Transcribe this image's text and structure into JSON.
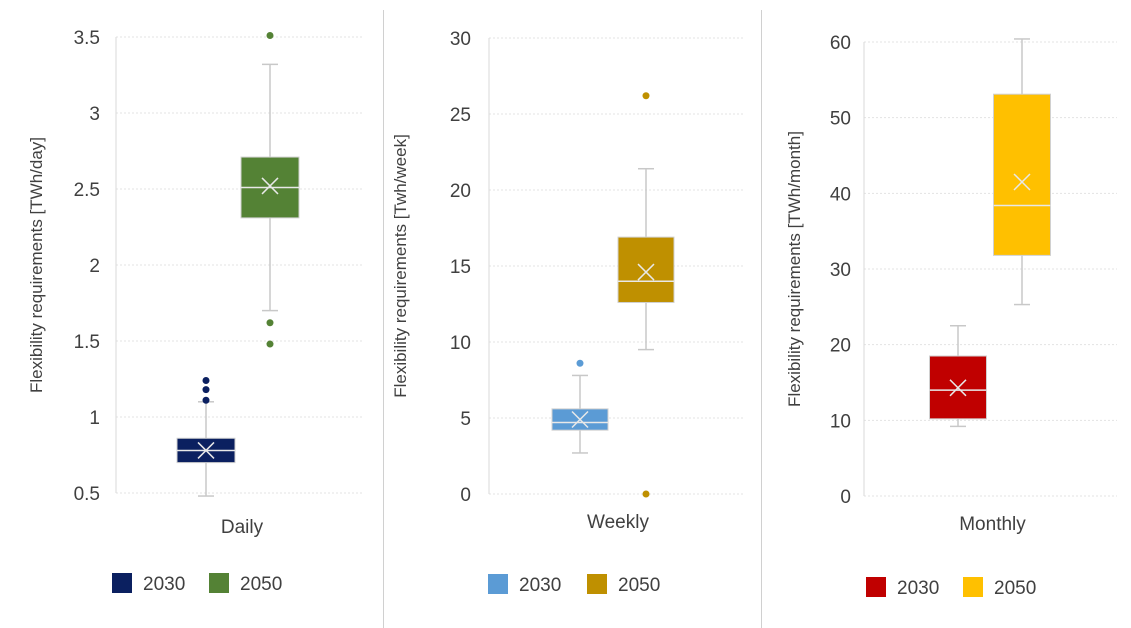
{
  "chart_data": [
    {
      "type": "box",
      "category": "Daily",
      "ylabel": "Flexibility requirements [TWh/day]",
      "ylim": [
        0.5,
        3.5
      ],
      "yticks": [
        0.5,
        1,
        1.5,
        2,
        2.5,
        3,
        3.5
      ],
      "grid": true,
      "legend_position": "bottom",
      "series": [
        {
          "name": "2030",
          "color": "#0b2060",
          "whisker_low": 0.48,
          "q1": 0.7,
          "median": 0.78,
          "q3": 0.86,
          "whisker_high": 1.1,
          "mean": 0.78,
          "outliers": [
            1.11,
            1.18,
            1.24
          ]
        },
        {
          "name": "2050",
          "color": "#548235",
          "whisker_low": 1.7,
          "q1": 2.31,
          "median": 2.51,
          "q3": 2.71,
          "whisker_high": 3.32,
          "mean": 2.52,
          "outliers": [
            1.48,
            1.62,
            3.51
          ]
        }
      ]
    },
    {
      "type": "box",
      "category": "Weekly",
      "ylabel": "Flexibility requirements [Twh/week]",
      "ylim": [
        0,
        30
      ],
      "yticks": [
        0,
        5,
        10,
        15,
        20,
        25,
        30
      ],
      "grid": true,
      "legend_position": "bottom",
      "series": [
        {
          "name": "2030",
          "color": "#5b9bd5",
          "whisker_low": 2.7,
          "q1": 4.2,
          "median": 4.7,
          "q3": 5.6,
          "whisker_high": 7.8,
          "mean": 4.9,
          "outliers": [
            8.6
          ]
        },
        {
          "name": "2050",
          "color": "#bf9000",
          "whisker_low": 9.5,
          "q1": 12.6,
          "median": 14.0,
          "q3": 16.9,
          "whisker_high": 21.4,
          "mean": 14.6,
          "outliers": [
            0.0,
            26.2
          ]
        }
      ]
    },
    {
      "type": "box",
      "category": "Monthly",
      "ylabel": "Flexibility requirements [TWh/month]",
      "ylim": [
        0,
        60
      ],
      "yticks": [
        0,
        10,
        20,
        30,
        40,
        50,
        60
      ],
      "grid": true,
      "legend_position": "bottom",
      "series": [
        {
          "name": "2030",
          "color": "#c00000",
          "whisker_low": 9.2,
          "q1": 10.2,
          "median": 14.0,
          "q3": 18.5,
          "whisker_high": 22.5,
          "mean": 14.3,
          "outliers": []
        },
        {
          "name": "2050",
          "color": "#ffc000",
          "whisker_low": 25.3,
          "q1": 31.8,
          "median": 38.4,
          "q3": 53.1,
          "whisker_high": 60.4,
          "mean": 41.5,
          "outliers": []
        }
      ]
    }
  ]
}
